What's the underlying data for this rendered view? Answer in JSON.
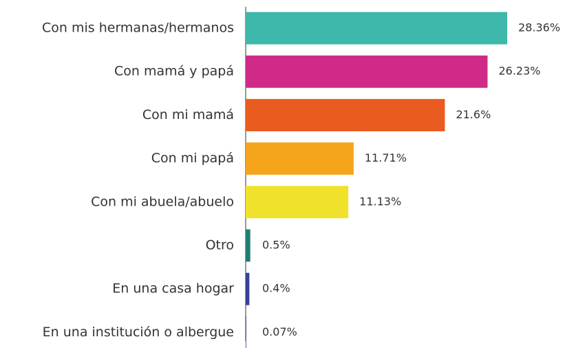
{
  "chart_data": {
    "type": "bar",
    "orientation": "horizontal",
    "categories": [
      "Con mis hermanas/hermanos",
      "Con mamá y papá",
      "Con mi mamá",
      "Con mi papá",
      "Con mi abuela/abuelo",
      "Otro",
      "En una casa hogar",
      "En una institución o albergue"
    ],
    "values": [
      28.36,
      26.23,
      21.6,
      11.71,
      11.13,
      0.5,
      0.4,
      0.07
    ],
    "value_labels": [
      "28.36%",
      "26.23%",
      "21.6%",
      "11.71%",
      "11.13%",
      "0.5%",
      "0.4%",
      "0.07%"
    ],
    "colors": [
      "#3db8aa",
      "#cf2a87",
      "#ea5b1f",
      "#f5a51b",
      "#f0e22b",
      "#1f7f6e",
      "#3a3f9a",
      "#6c4a8f"
    ],
    "xlim": [
      0,
      30
    ]
  }
}
